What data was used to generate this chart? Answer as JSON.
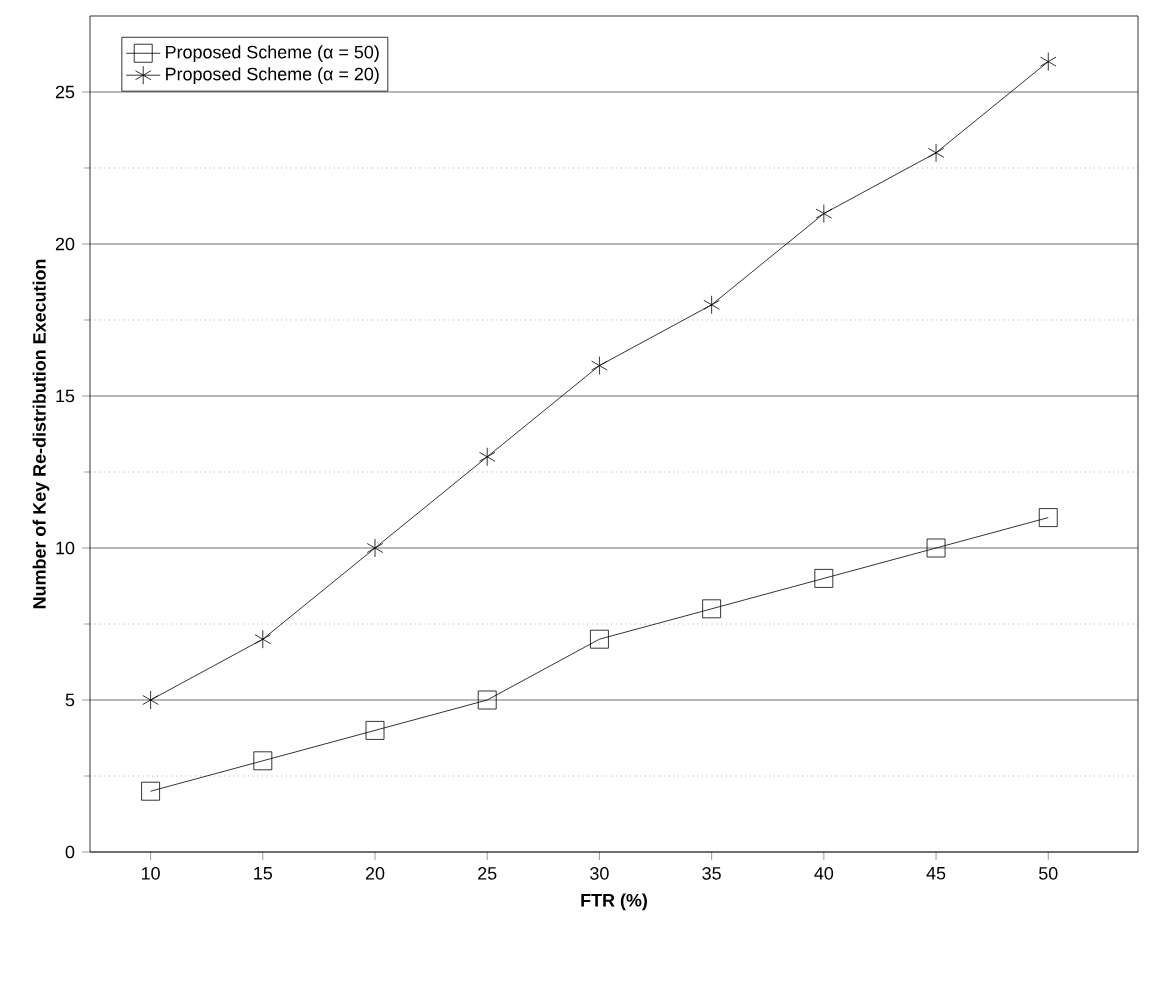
{
  "chart_data": {
    "type": "line",
    "xlabel": "FTR (%)",
    "ylabel": "Number of Key Re-distribution Execution",
    "x": [
      10,
      15,
      20,
      25,
      30,
      35,
      40,
      45,
      50
    ],
    "xlim": [
      7.3,
      54
    ],
    "xticks": [
      10,
      15,
      20,
      25,
      30,
      35,
      40,
      45,
      50
    ],
    "ylim": [
      0,
      27.5
    ],
    "yticks": [
      0,
      5,
      10,
      15,
      20,
      25
    ],
    "grid": "y",
    "legend": "top left",
    "series": [
      {
        "name": "Proposed Scheme (α = 50)",
        "color": "#000000",
        "marker": "square",
        "values": [
          2,
          3,
          4,
          5,
          7,
          8,
          9,
          10,
          11
        ]
      },
      {
        "name": "Proposed Scheme (α = 20)",
        "color": "#000000",
        "marker": "cross",
        "values": [
          5,
          7,
          10,
          13,
          16,
          18,
          21,
          23,
          26
        ]
      }
    ]
  }
}
